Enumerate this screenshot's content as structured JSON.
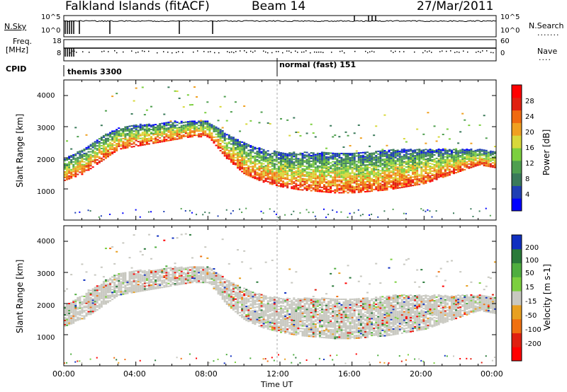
{
  "header": {
    "station": "Falkland Islands (fitACF)",
    "beam": "Beam 14",
    "date": "27/Mar/2011"
  },
  "side_labels": {
    "nsky": "N.Sky",
    "freq": "Freq.",
    "freq_unit": "[MHz]",
    "cpid": "CPID",
    "nsearch": "N.Search",
    "nave": "Nave"
  },
  "cpid_labels": [
    "themis 3300",
    "normal (fast) 151"
  ],
  "noise_panel": {
    "left_ticks": [
      "10^5",
      "10^0"
    ],
    "right_ticks": [
      "10^5",
      "10^0"
    ]
  },
  "freq_panel": {
    "left_ticks": [
      "18",
      "8"
    ],
    "right_ticks": [
      "60",
      "0"
    ]
  },
  "x_axis": {
    "label": "Time UT",
    "ticks": [
      "00:00",
      "04:00",
      "08:00",
      "12:00",
      "16:00",
      "20:00",
      "00:00"
    ]
  },
  "power_panel": {
    "ylabel": "Slant Range [km]",
    "y_ticks": [
      "4000",
      "3000",
      "2000",
      "1000"
    ],
    "colorbar_label": "Power [dB]",
    "colorbar_ticks": [
      "28",
      "24",
      "20",
      "16",
      "12",
      "8",
      "4"
    ],
    "colors": [
      "#0000ff",
      "#1f3fb4",
      "#3a7a5a",
      "#4f9f4f",
      "#7ccf3f",
      "#d8d83a",
      "#f0a020",
      "#f06a10",
      "#e02010",
      "#ff0000"
    ]
  },
  "velocity_panel": {
    "ylabel": "Slant Range [km]",
    "y_ticks": [
      "4000",
      "3000",
      "2000",
      "1000"
    ],
    "colorbar_label": "Velocity [m s-1]",
    "colorbar_ticks": [
      "200",
      "100",
      "50",
      "15",
      "-15",
      "-50",
      "-100",
      "-200"
    ],
    "colors": [
      "#1030c0",
      "#2a7a3a",
      "#4fae3f",
      "#7ccf3f",
      "#c8c8c0",
      "#e8a020",
      "#f07010",
      "#e02010",
      "#ff0000"
    ]
  },
  "chart_data": {
    "type": "heatmap",
    "x_unit": "hours UT",
    "x_range": [
      0,
      24
    ],
    "y_range_km": [
      0,
      4500
    ],
    "echo_band": {
      "hours": [
        0,
        1,
        2,
        3,
        4,
        5,
        6,
        7,
        8,
        9,
        10,
        11,
        12,
        13,
        14,
        15,
        16,
        17,
        18,
        19,
        20,
        21,
        22,
        23,
        24
      ],
      "lower_edge_km": [
        1300,
        1500,
        1900,
        2300,
        2400,
        2500,
        2600,
        2700,
        2700,
        2000,
        1500,
        1250,
        1100,
        1000,
        950,
        900,
        900,
        950,
        1000,
        1100,
        1200,
        1400,
        1600,
        1800,
        1700
      ],
      "upper_edge_km": [
        2000,
        2300,
        2700,
        3000,
        3100,
        3100,
        3200,
        3200,
        3200,
        2800,
        2500,
        2300,
        2200,
        2200,
        2200,
        2200,
        2200,
        2200,
        2300,
        2300,
        2300,
        2300,
        2300,
        2300,
        2200
      ]
    }
  }
}
